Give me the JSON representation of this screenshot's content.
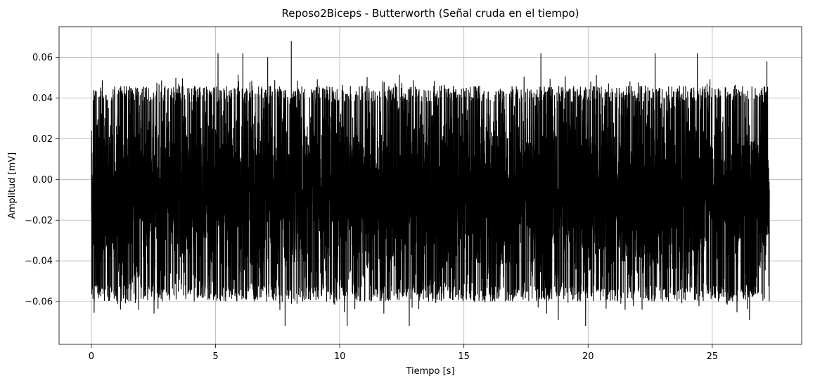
{
  "chart_data": {
    "type": "line",
    "title": "Reposo2Biceps - Butterworth (Señal cruda en el tiempo)",
    "xlabel": "Tiempo [s]",
    "ylabel": "Amplitud [mV]",
    "xlim": [
      -1.3,
      28.6
    ],
    "ylim": [
      -0.081,
      0.075
    ],
    "xticks": [
      0,
      5,
      10,
      15,
      20,
      25
    ],
    "xtick_labels": [
      "0",
      "5",
      "10",
      "15",
      "20",
      "25"
    ],
    "yticks": [
      -0.06,
      -0.04,
      -0.02,
      0.0,
      0.02,
      0.04,
      0.06
    ],
    "ytick_labels": [
      "−0.06",
      "−0.04",
      "−0.02",
      "0.00",
      "0.02",
      "0.04",
      "0.06"
    ],
    "grid": true,
    "series": [
      {
        "color": "#000000",
        "x_range": [
          0,
          27.3
        ],
        "envelope": {
          "typical_max": 0.046,
          "typical_min": -0.06,
          "peak_max": 0.068,
          "peak_min": -0.072
        },
        "notable_points": [
          {
            "x": 8.05,
            "y": 0.068
          },
          {
            "x": 5.1,
            "y": 0.062
          },
          {
            "x": 6.1,
            "y": 0.062
          },
          {
            "x": 18.1,
            "y": 0.062
          },
          {
            "x": 22.7,
            "y": 0.062
          },
          {
            "x": 24.4,
            "y": 0.062
          },
          {
            "x": 7.1,
            "y": 0.06
          },
          {
            "x": 27.2,
            "y": 0.058
          },
          {
            "x": 7.8,
            "y": -0.072
          },
          {
            "x": 10.3,
            "y": -0.072
          },
          {
            "x": 12.8,
            "y": -0.072
          },
          {
            "x": 19.9,
            "y": -0.072
          },
          {
            "x": 18.8,
            "y": -0.069
          },
          {
            "x": 26.5,
            "y": -0.069
          }
        ]
      }
    ]
  }
}
